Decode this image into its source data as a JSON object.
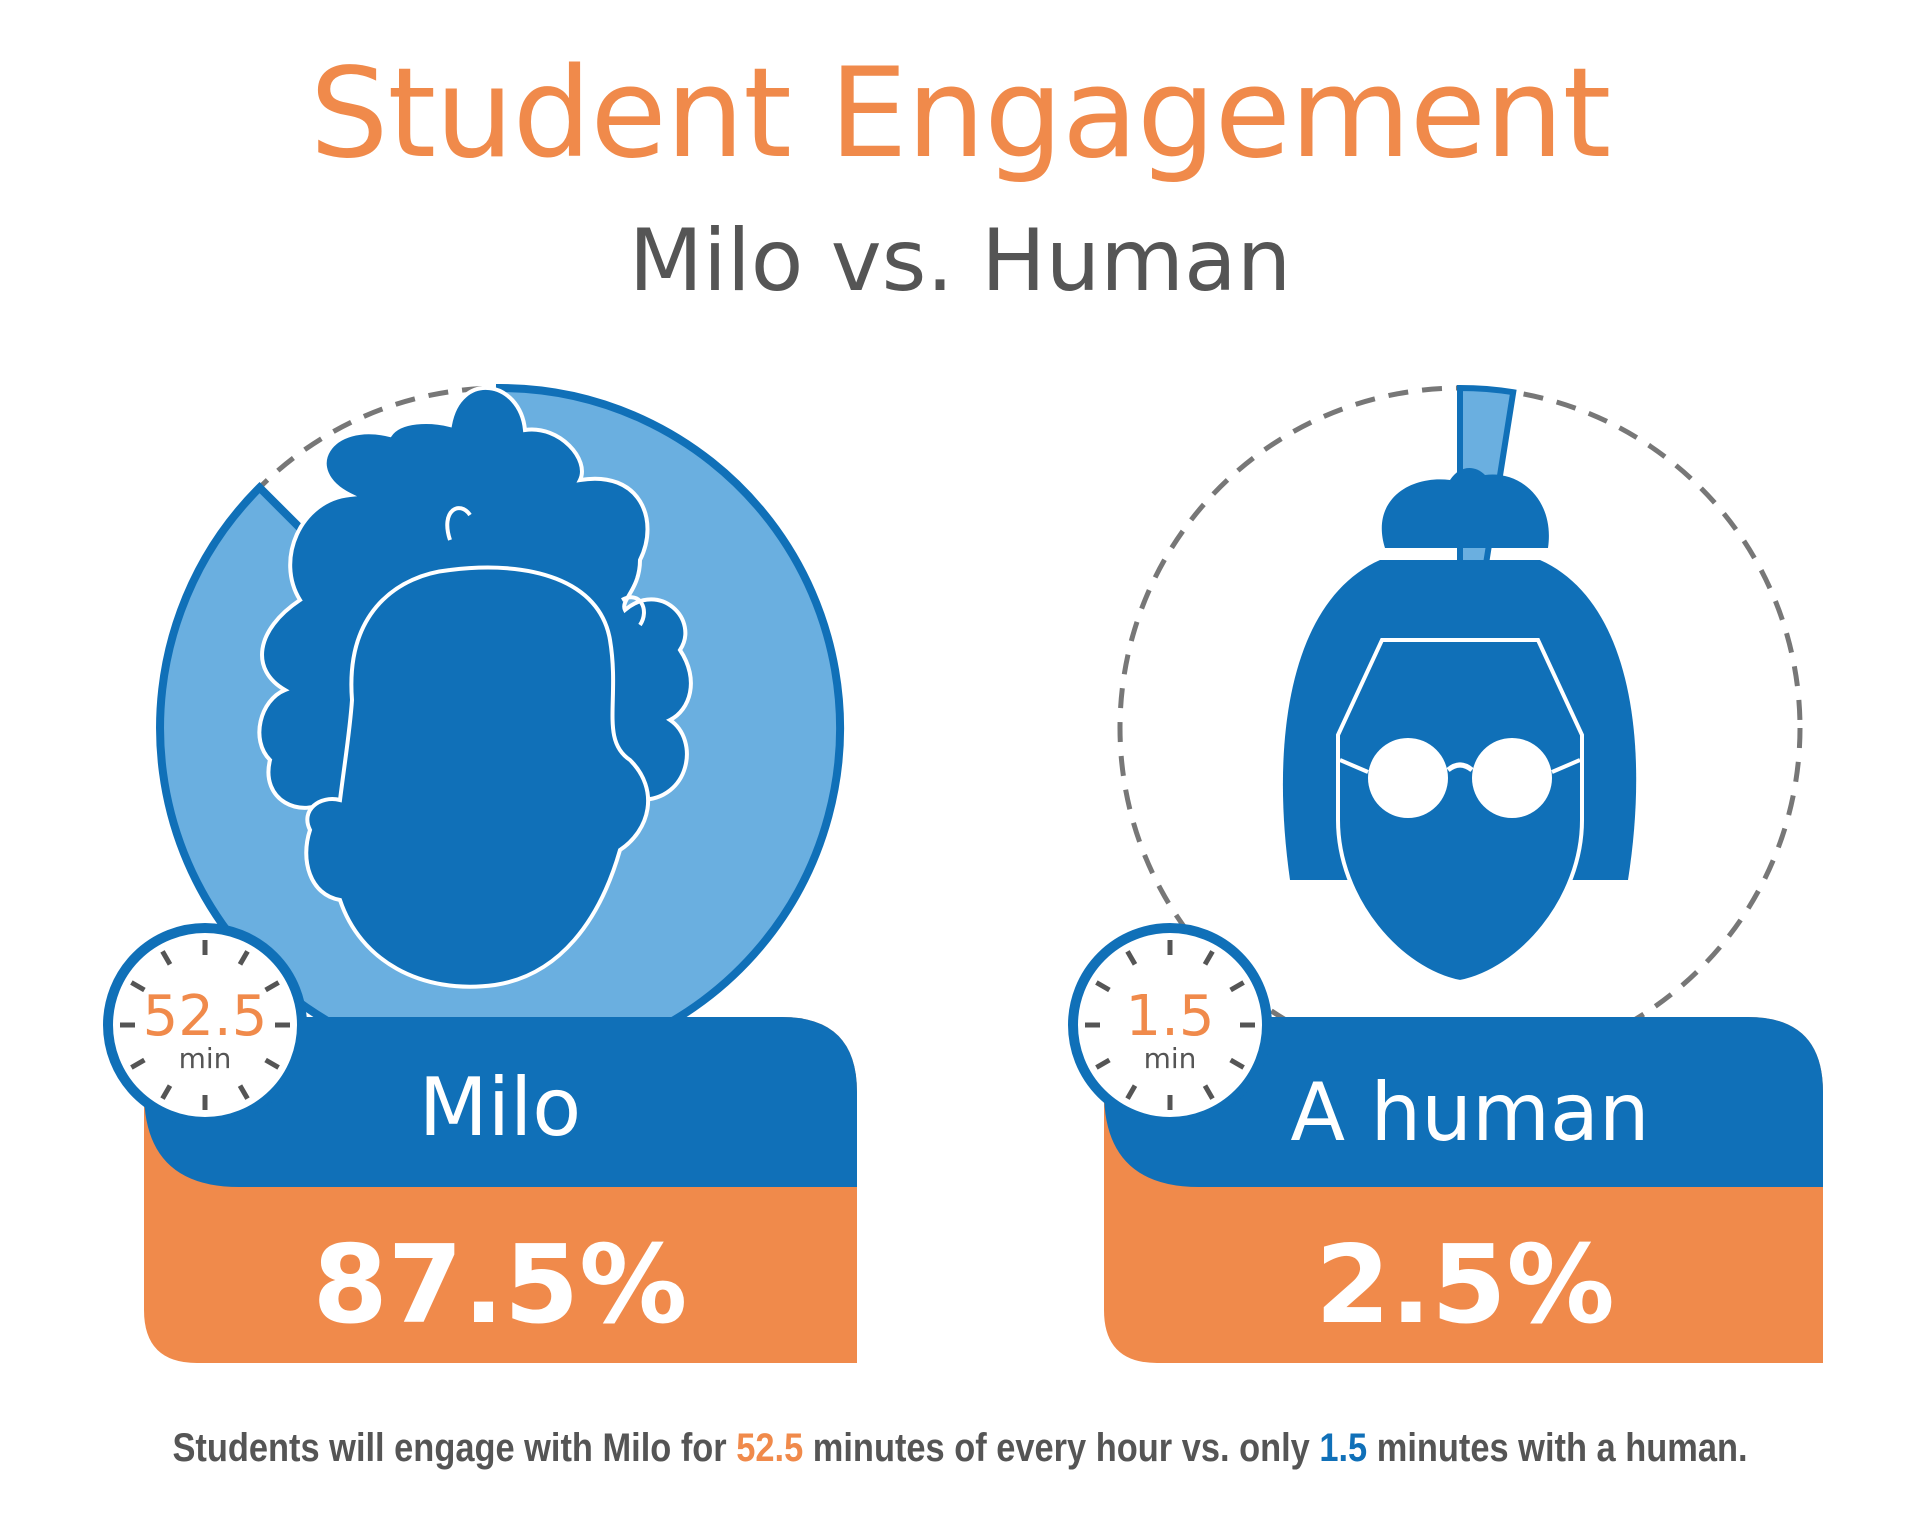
{
  "title": "Student Engagement",
  "subtitle": "Milo vs. Human",
  "colors": {
    "orange": "#f08a4b",
    "blue_dark": "#1070b8",
    "blue_light": "#6aafe0",
    "gray": "#555555",
    "dash": "#777777"
  },
  "chart_data": [
    {
      "type": "pie",
      "name": "Milo",
      "value": 87.5,
      "percent_label": "87.5%",
      "minutes": "52.5",
      "minutes_unit": "min",
      "label": "Milo"
    },
    {
      "type": "pie",
      "name": "A human",
      "value": 2.5,
      "percent_label": "2.5%",
      "minutes": "1.5",
      "minutes_unit": "min",
      "label": "A human"
    }
  ],
  "caption": {
    "part1": "Students will engage with Milo for ",
    "value1": "52.5",
    "part2": " minutes of every hour vs. only ",
    "value2": "1.5",
    "part3": " minutes with a human."
  }
}
